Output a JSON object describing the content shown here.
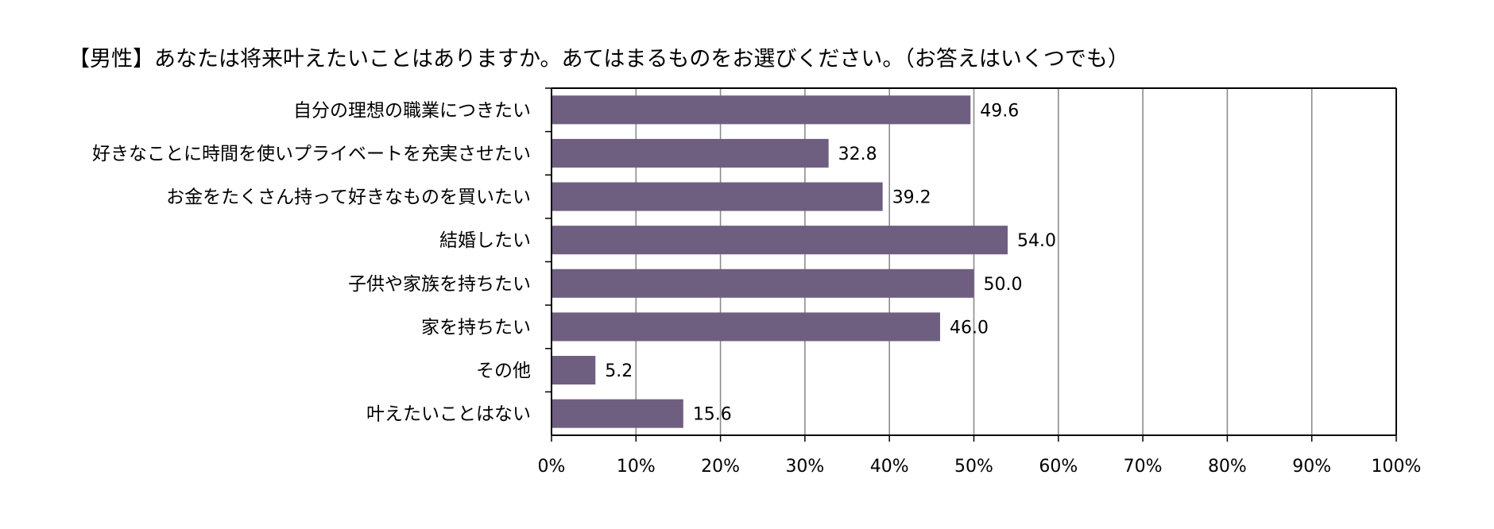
{
  "chart_data": {
    "type": "bar",
    "orientation": "horizontal",
    "title": "【男性】あなたは将来叶えたいことはありますか。あてはまるものをお選びください。（お答えはいくつでも）",
    "categories": [
      "自分の理想の職業につきたい",
      "好きなことに時間を使いプライベートを充実させたい",
      "お金をたくさん持って好きなものを買いたい",
      "結婚したい",
      "子供や家族を持ちたい",
      "家を持ちたい",
      "その他",
      "叶えたいことはない"
    ],
    "values": [
      49.6,
      32.8,
      39.2,
      54.0,
      50.0,
      46.0,
      5.2,
      15.6
    ],
    "data_labels": [
      "49.6",
      "32.8",
      "39.2",
      "54.0",
      "50.0",
      "46.0",
      "5.2",
      "15.6"
    ],
    "xlim": [
      0,
      100
    ],
    "xticks": [
      "0%",
      "10%",
      "20%",
      "30%",
      "40%",
      "50%",
      "60%",
      "70%",
      "80%",
      "90%",
      "100%"
    ],
    "grid": "vertical",
    "bar_color": "#6e5f80",
    "legend": "none"
  }
}
